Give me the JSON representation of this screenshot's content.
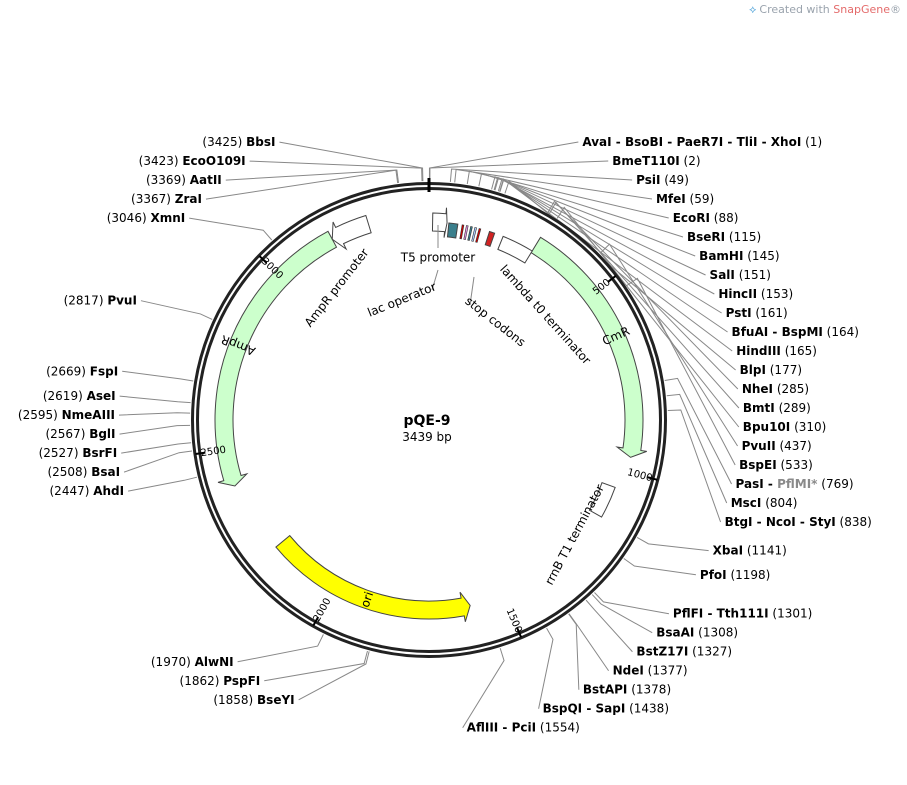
{
  "brand": {
    "prefix": "Created with",
    "name": "SnapGene",
    "mark": "®"
  },
  "plasmid": {
    "name": "pQE-9",
    "length_text": "3439 bp",
    "length": 3439
  },
  "ticks": [
    500,
    1000,
    1500,
    2000,
    2500,
    3000
  ],
  "sites": [
    {
      "names": [
        "AvaI",
        "BsoBI",
        "PaeR7I",
        "TliI",
        "XhoI"
      ],
      "pos": 1
    },
    {
      "names": [
        "BmeT110I"
      ],
      "pos": 2
    },
    {
      "names": [
        "PsiI"
      ],
      "pos": 49
    },
    {
      "names": [
        "MfeI"
      ],
      "pos": 59
    },
    {
      "names": [
        "EcoRI"
      ],
      "pos": 88
    },
    {
      "names": [
        "BseRI"
      ],
      "pos": 115
    },
    {
      "names": [
        "BamHI"
      ],
      "pos": 145
    },
    {
      "names": [
        "SalI"
      ],
      "pos": 151
    },
    {
      "names": [
        "HincII"
      ],
      "pos": 153
    },
    {
      "names": [
        "PstI"
      ],
      "pos": 161
    },
    {
      "names": [
        "BfuAI",
        "BspMI"
      ],
      "pos": 164
    },
    {
      "names": [
        "HindIII"
      ],
      "pos": 165
    },
    {
      "names": [
        "BlpI"
      ],
      "pos": 177
    },
    {
      "names": [
        "NheI"
      ],
      "pos": 285
    },
    {
      "names": [
        "BmtI"
      ],
      "pos": 289
    },
    {
      "names": [
        "Bpu10I"
      ],
      "pos": 310
    },
    {
      "names": [
        "PvuII"
      ],
      "pos": 437
    },
    {
      "names": [
        "BspEI"
      ],
      "pos": 533
    },
    {
      "names": [
        "PasI",
        "PflMI*"
      ],
      "pos": 769,
      "gray_index": 1
    },
    {
      "names": [
        "MscI"
      ],
      "pos": 804
    },
    {
      "names": [
        "BtgI",
        "NcoI",
        "StyI"
      ],
      "pos": 838
    },
    {
      "names": [
        "XbaI"
      ],
      "pos": 1141
    },
    {
      "names": [
        "PfoI"
      ],
      "pos": 1198
    },
    {
      "names": [
        "PflFI",
        "Tth111I"
      ],
      "pos": 1301
    },
    {
      "names": [
        "BsaAI"
      ],
      "pos": 1308
    },
    {
      "names": [
        "BstZ17I"
      ],
      "pos": 1327
    },
    {
      "names": [
        "NdeI"
      ],
      "pos": 1377
    },
    {
      "names": [
        "BstAPI"
      ],
      "pos": 1378
    },
    {
      "names": [
        "BspQI",
        "SapI"
      ],
      "pos": 1438
    },
    {
      "names": [
        "AflIII",
        "PciI"
      ],
      "pos": 1554
    },
    {
      "names": [
        "BseYI"
      ],
      "pos": 1858
    },
    {
      "names": [
        "PspFI"
      ],
      "pos": 1862
    },
    {
      "names": [
        "AlwNI"
      ],
      "pos": 1970
    },
    {
      "names": [
        "AhdI"
      ],
      "pos": 2447
    },
    {
      "names": [
        "BsaI"
      ],
      "pos": 2508
    },
    {
      "names": [
        "BsrFI"
      ],
      "pos": 2527
    },
    {
      "names": [
        "BglI"
      ],
      "pos": 2567
    },
    {
      "names": [
        "NmeAIII"
      ],
      "pos": 2595
    },
    {
      "names": [
        "AseI"
      ],
      "pos": 2619
    },
    {
      "names": [
        "FspI"
      ],
      "pos": 2669
    },
    {
      "names": [
        "PvuI"
      ],
      "pos": 2817
    },
    {
      "names": [
        "XmnI"
      ],
      "pos": 3046
    },
    {
      "names": [
        "ZraI"
      ],
      "pos": 3367
    },
    {
      "names": [
        "AatII"
      ],
      "pos": 3369
    },
    {
      "names": [
        "EcoO109I"
      ],
      "pos": 3423
    },
    {
      "names": [
        "BbsI"
      ],
      "pos": 3425
    }
  ],
  "features": [
    {
      "label": "CmR",
      "start": 300,
      "end": 960,
      "type": "arrow",
      "direction": "cw",
      "color": "#ccffcc",
      "label_inside": true
    },
    {
      "label": "ori",
      "start": 1600,
      "end": 2200,
      "type": "arrow",
      "direction": "ccw",
      "color": "#ffff00",
      "label_inside": true
    },
    {
      "label": "AmpR",
      "start": 2400,
      "end": 3170,
      "type": "arrow",
      "direction": "ccw",
      "color": "#ccffcc",
      "label_inside": true
    },
    {
      "label": "AmpR promoter",
      "start": 3170,
      "end": 3275,
      "type": "arrow",
      "direction": "ccw",
      "color": "#ffffff",
      "label_inside": false
    },
    {
      "label": "T5 promoter",
      "start": 10,
      "end": 50,
      "type": "arrow",
      "direction": "cw",
      "color": "#ffffff",
      "label_inside": false
    },
    {
      "label": "lac operator",
      "start": 55,
      "end": 80,
      "type": "box",
      "color": "#3a7f8c",
      "label_inside": false
    },
    {
      "label": "stop codons",
      "start": 170,
      "end": 185,
      "type": "box",
      "color": "#d22222",
      "label_inside": false
    },
    {
      "label": "lambda t0 terminator",
      "start": 210,
      "end": 300,
      "type": "box",
      "color": "#ffffff",
      "label_inside": false
    },
    {
      "label": "rrnB T1 terminator",
      "start": 1050,
      "end": 1140,
      "type": "box",
      "color": "#ffffff",
      "label_inside": false
    }
  ]
}
